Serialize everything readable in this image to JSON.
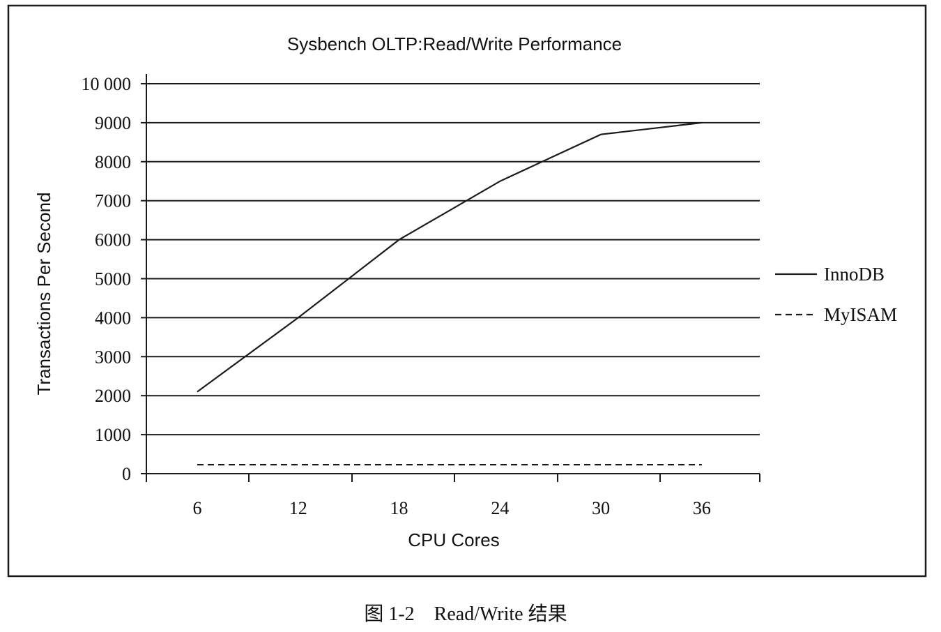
{
  "chart_data": {
    "type": "line",
    "title": "Sysbench OLTP:Read/Write Performance",
    "xlabel": "CPU Cores",
    "ylabel": "Transactions Per Second",
    "x_ticks": [
      "6",
      "12",
      "18",
      "24",
      "30",
      "36"
    ],
    "y_ticks": [
      "0",
      "1000",
      "2000",
      "3000",
      "4000",
      "5000",
      "6000",
      "7000",
      "8000",
      "9000",
      "10 000"
    ],
    "ylim": [
      0,
      10000
    ],
    "grid": true,
    "legend_position": "right",
    "series": [
      {
        "name": "InnoDB",
        "line_style": "solid",
        "color": "#1a1a1a",
        "x": [
          6,
          12,
          18,
          24,
          30,
          33,
          36
        ],
        "y": [
          2100,
          4000,
          6000,
          7500,
          8700,
          8850,
          9000
        ]
      },
      {
        "name": "MyISAM",
        "line_style": "dashed",
        "color": "#1a1a1a",
        "x": [
          6,
          12,
          18,
          24,
          30,
          36
        ],
        "y": [
          230,
          230,
          230,
          230,
          230,
          230
        ]
      }
    ]
  },
  "caption": "图 1-2　Read/Write 结果"
}
